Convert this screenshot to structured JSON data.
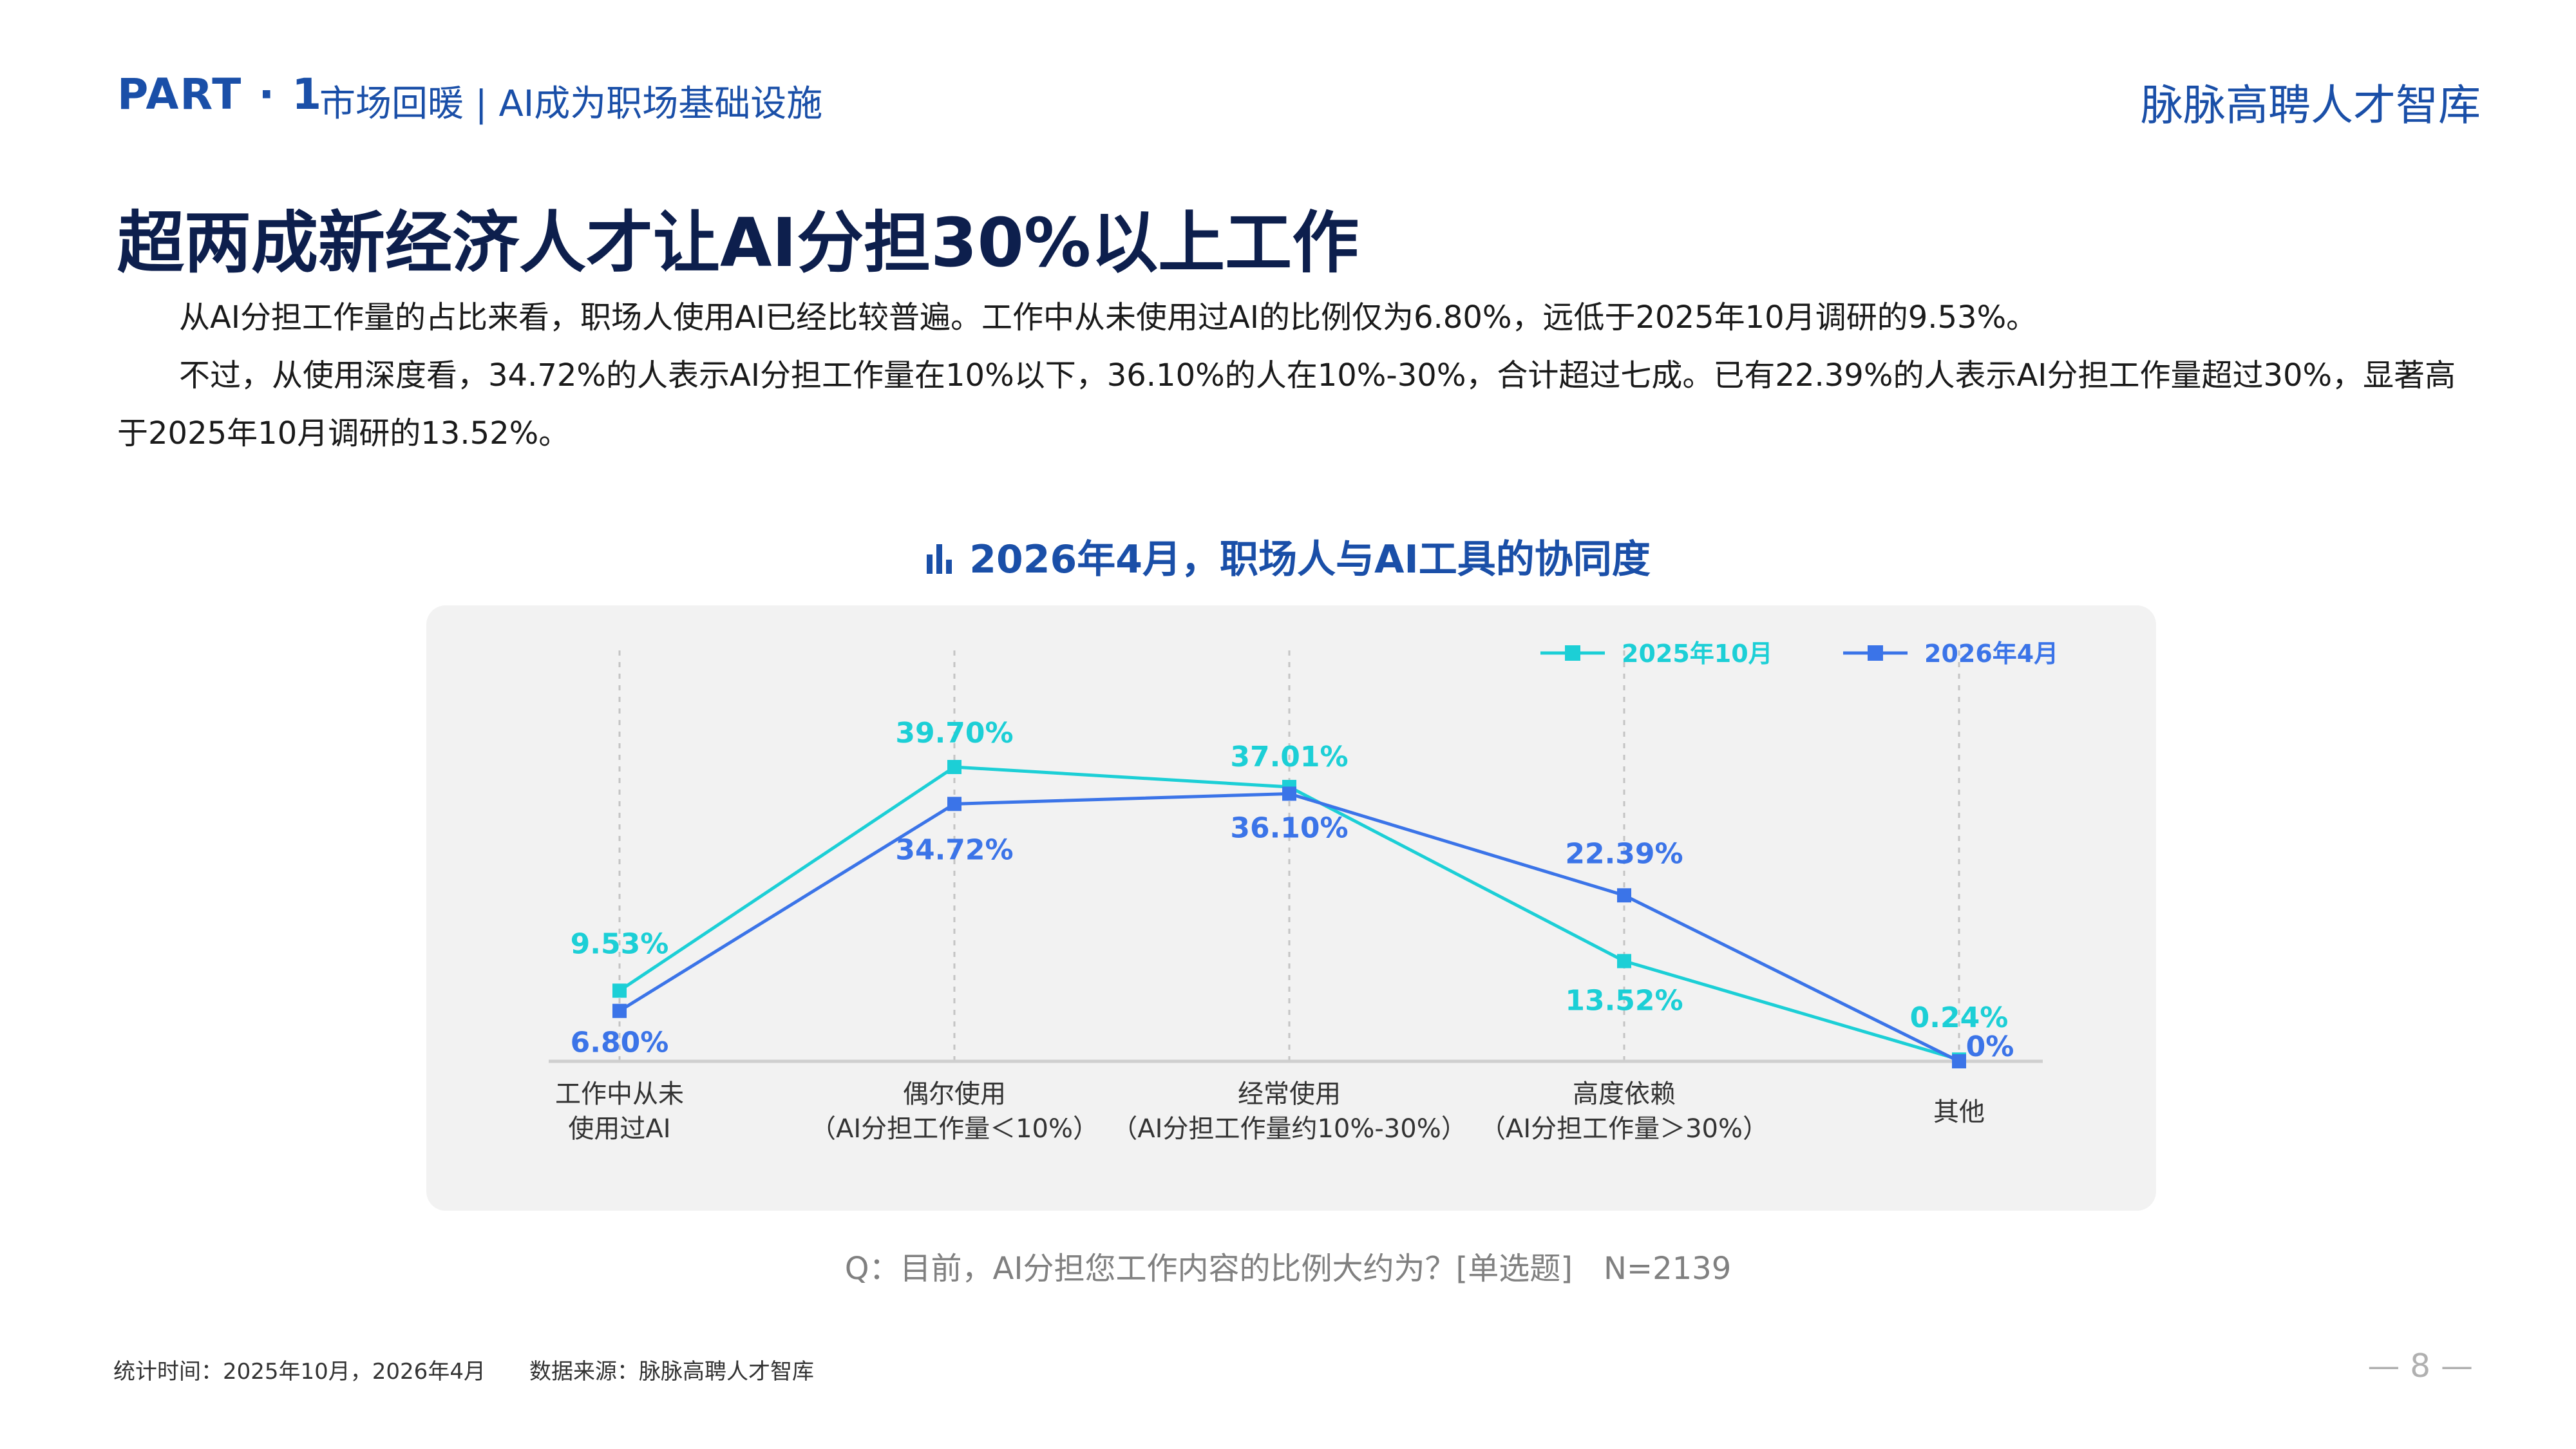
{
  "header": {
    "part": "PART · 1",
    "section": "市场回暖 | AI成为职场基础设施",
    "brand": "脉脉高聘人才智库"
  },
  "title": "超两成新经济人才让AI分担30%以上工作",
  "paragraphs": [
    "从AI分担工作量的占比来看，职场人使用AI已经比较普遍。工作中从未使用过AI的比例仅为6.80%，远低于2025年10月调研的9.53%。",
    "不过，从使用深度看，34.72%的人表示AI分担工作量在10%以下，36.10%的人在10%-30%，合计超过七成。已有22.39%的人表示AI分担工作量超过30%，显著高于2025年10月调研的13.52%。"
  ],
  "chart_title": "2026年4月，职场人与AI工具的协同度",
  "chart_icon": "bar-chart-icon",
  "chart_data": {
    "type": "line",
    "categories": [
      [
        "工作中从未",
        "使用过AI"
      ],
      [
        "偶尔使用",
        "（AI分担工作量＜10%）"
      ],
      [
        "经常使用",
        "（AI分担工作量约10%-30%）"
      ],
      [
        "高度依赖",
        "（AI分担工作量＞30%）"
      ],
      [
        "其他"
      ]
    ],
    "series": [
      {
        "name": "2025年10月",
        "values": [
          9.53,
          39.7,
          37.01,
          13.52,
          0.24
        ],
        "labels": [
          "9.53%",
          "39.70%",
          "37.01%",
          "13.52%",
          "0.24%"
        ],
        "color": "#1ccfd6"
      },
      {
        "name": "2026年4月",
        "values": [
          6.8,
          34.72,
          36.1,
          22.39,
          0
        ],
        "labels": [
          "6.80%",
          "34.72%",
          "36.10%",
          "22.39%",
          "0%"
        ],
        "color": "#3b74e8"
      }
    ],
    "ylim": [
      0,
      45
    ],
    "grid": "vertical dotted",
    "legend": "top-right"
  },
  "question": "Q：目前，AI分担您工作内容的比例大约为？[单选题]　N=2139",
  "footer": {
    "note": "统计时间：2025年10月，2026年4月　　数据来源：脉脉高聘人才智库",
    "page": "— 8 —"
  }
}
